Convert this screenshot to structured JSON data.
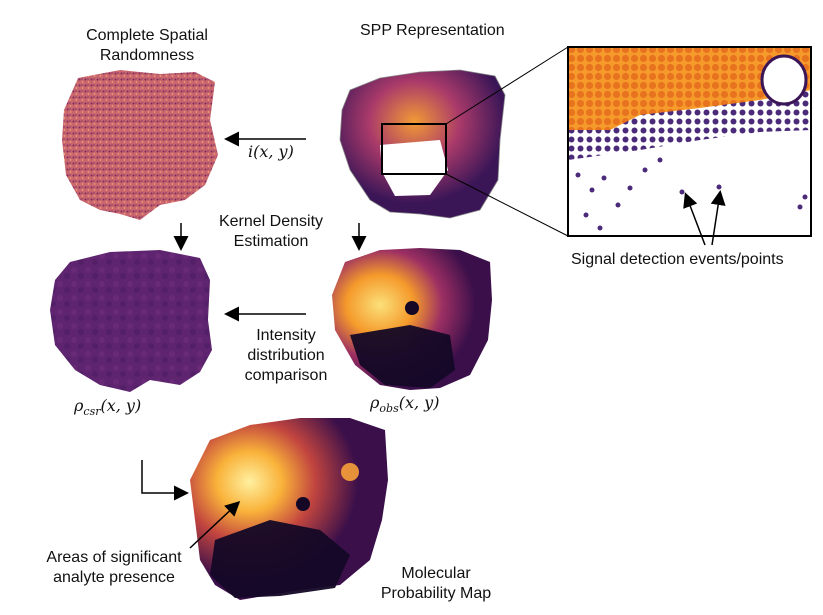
{
  "panels": {
    "csr_title": [
      "Complete Spatial",
      "Randomness"
    ],
    "spp_title": "SPP Representation",
    "intensity_fn": "i(x, y)",
    "kde_label": [
      "Kernel Density",
      "Estimation"
    ],
    "comparison_label": [
      "Intensity",
      "distribution",
      "comparison"
    ],
    "rho_csr": {
      "base": "ρ",
      "sub": "csr",
      "args": "(x, y)"
    },
    "rho_obs": {
      "base": "ρ",
      "sub": "obs",
      "args": "(x, y)"
    },
    "signal_label": "Signal detection events/points",
    "areas_label": [
      "Areas of significant",
      "analyte presence"
    ],
    "map_title": [
      "Molecular",
      "Probability Map"
    ]
  },
  "colors": {
    "inferno_dark": "#1a0b2e",
    "inferno_purple": "#5a1f6b",
    "inferno_magenta": "#9c2f63",
    "inferno_orange": "#e8731f",
    "inferno_yellow": "#fbe07a",
    "csr_pink": "#c9656e"
  }
}
